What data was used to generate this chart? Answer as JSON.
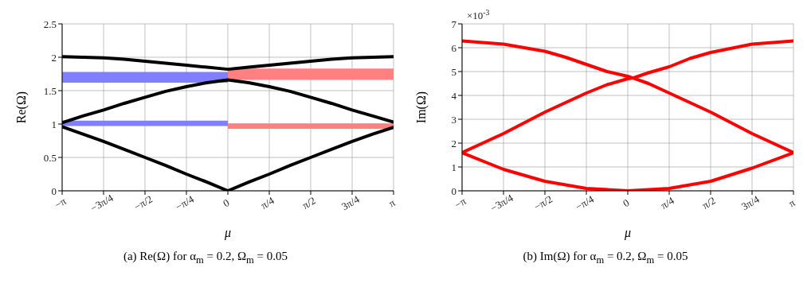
{
  "chart_data": [
    {
      "type": "line",
      "xlabel": "μ",
      "ylabel": "Re(Ω)",
      "annotations": [
        "(a) Re(Ω) for α$_{m}$ = 0.2, Ω$_{m}$ = 0.05"
      ],
      "xlim": [
        -3.1416,
        3.1416
      ],
      "xticks": [
        {
          "value": -3.1416,
          "label": "−π"
        },
        {
          "value": -2.3562,
          "label": "−3π/4"
        },
        {
          "value": -1.5708,
          "label": "−π/2"
        },
        {
          "value": -0.7854,
          "label": "−π/4"
        },
        0,
        {
          "value": 0.7854,
          "label": "π/4"
        },
        {
          "value": 1.5708,
          "label": "π/2"
        },
        {
          "value": 2.3562,
          "label": "3π/4"
        },
        {
          "value": 3.1416,
          "label": "π"
        }
      ],
      "ylim": [
        0,
        2.5
      ],
      "yticks": [
        0,
        0.5,
        1,
        1.5,
        2,
        2.5
      ],
      "grid": true,
      "line_style": "solid",
      "series": [
        {
          "type": "bar",
          "color": "#8080ff",
          "x": [
            -1.5708,
            -1.5708
          ],
          "base": [
            1.62,
            0.97
          ],
          "values": [
            0.16,
            0.08
          ]
        },
        {
          "type": "bar",
          "color": "#ff8080",
          "x": [
            1.5708,
            1.5708
          ],
          "base": [
            1.66,
            0.93
          ],
          "values": [
            0.17,
            0.08
          ]
        },
        {
          "color": "#000000",
          "x": [
            -3.1416,
            -2.7489,
            -2.3562,
            -1.9635,
            -1.5708,
            -1.1781,
            -0.7854,
            -0.3927,
            0,
            0.3927,
            0.7854,
            1.1781,
            1.5708,
            1.9635,
            2.3562,
            2.7489,
            3.1416
          ],
          "values": [
            2.01,
            2.0,
            1.99,
            1.97,
            1.94,
            1.91,
            1.88,
            1.85,
            1.82,
            1.85,
            1.88,
            1.91,
            1.94,
            1.97,
            1.99,
            2.0,
            2.01
          ]
        },
        {
          "color": "#000000",
          "x": [
            -3.1416,
            -2.7489,
            -2.3562,
            -1.9635,
            -1.5708,
            -1.1781,
            -0.7854,
            -0.3927,
            0,
            0.3927,
            0.7854,
            1.1781,
            1.5708,
            1.9635,
            2.3562,
            2.7489,
            3.1416
          ],
          "values": [
            1.02,
            1.12,
            1.21,
            1.31,
            1.4,
            1.49,
            1.56,
            1.62,
            1.66,
            1.62,
            1.56,
            1.49,
            1.4,
            1.31,
            1.21,
            1.12,
            1.03
          ]
        },
        {
          "color": "#000000",
          "x": [
            -3.1416,
            -2.7489,
            -2.3562,
            -1.9635,
            -1.5708,
            -1.1781,
            -0.7854,
            -0.3927,
            0,
            0.3927,
            0.7854,
            1.1781,
            1.5708,
            1.9635,
            2.3562,
            2.7489,
            3.1416
          ],
          "values": [
            0.96,
            0.85,
            0.74,
            0.62,
            0.5,
            0.38,
            0.25,
            0.13,
            0,
            0.13,
            0.25,
            0.38,
            0.5,
            0.62,
            0.74,
            0.85,
            0.95
          ]
        }
      ]
    },
    {
      "type": "line",
      "xlabel": "μ",
      "ylabel": "Im(Ω)",
      "annotations": [
        "×10$^{-3}$",
        "(b) Im(Ω) for α$_{m}$ = 0.2, Ω$_{m}$ = 0.05"
      ],
      "xlim": [
        -3.1416,
        3.1416
      ],
      "xticks": [
        {
          "value": -3.1416,
          "label": "−π"
        },
        {
          "value": -2.3562,
          "label": "−3π/4"
        },
        {
          "value": -1.5708,
          "label": "−π/2"
        },
        {
          "value": -0.7854,
          "label": "−π/4"
        },
        0,
        {
          "value": 0.7854,
          "label": "π/4"
        },
        {
          "value": 1.5708,
          "label": "π/2"
        },
        {
          "value": 2.3562,
          "label": "3π/4"
        },
        {
          "value": 3.1416,
          "label": "π"
        }
      ],
      "ylim": [
        0,
        7
      ],
      "yticks": [
        0,
        1,
        2,
        3,
        4,
        5,
        6,
        7
      ],
      "grid": true,
      "line_style": "solid",
      "series": [
        {
          "color": "#ff0000",
          "x": [
            -3.1416,
            -2.3562,
            -1.5708,
            -1.1781,
            -0.7854,
            -0.3927,
            0,
            0.1,
            0.3927,
            0.7854,
            1.5708,
            2.3562,
            3.1416
          ],
          "values": [
            6.28,
            6.15,
            5.85,
            5.6,
            5.3,
            5.0,
            4.8,
            4.73,
            4.5,
            4.1,
            3.3,
            2.4,
            1.6
          ]
        },
        {
          "color": "#ff0000",
          "x": [
            -3.1416,
            -2.3562,
            -1.5708,
            -0.7854,
            -0.3927,
            0,
            0.1,
            0.3927,
            0.7854,
            1.1781,
            1.5708,
            2.3562,
            3.1416
          ],
          "values": [
            1.6,
            2.4,
            3.3,
            4.1,
            4.45,
            4.7,
            4.73,
            4.95,
            5.2,
            5.55,
            5.8,
            6.15,
            6.28
          ]
        },
        {
          "color": "#ff0000",
          "x": [
            -3.1416,
            -2.3562,
            -1.5708,
            -0.7854,
            0,
            0.7854,
            1.5708,
            2.3562,
            3.1416
          ],
          "values": [
            1.6,
            0.9,
            0.4,
            0.1,
            0.0,
            0.1,
            0.4,
            0.95,
            1.6
          ]
        }
      ]
    }
  ]
}
